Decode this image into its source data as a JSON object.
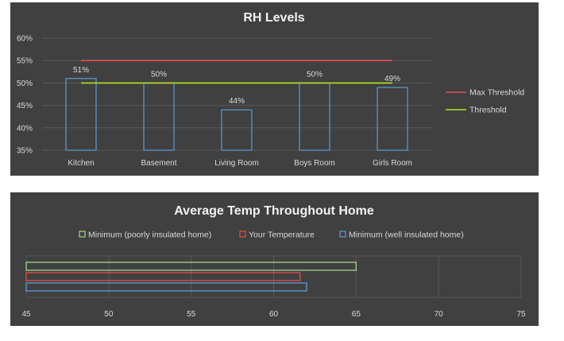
{
  "chart_data": [
    {
      "type": "bar",
      "title": "RH Levels",
      "categories": [
        "Kitchen",
        "Basement",
        "Living Room",
        "Boys Room",
        "Girls Room"
      ],
      "series": [
        {
          "values": [
            51,
            50,
            44,
            50,
            49
          ],
          "color": "#5b9bd5"
        }
      ],
      "data_labels": [
        "51%",
        "50%",
        "44%",
        "50%",
        "49%"
      ],
      "lines": [
        {
          "name": "Max Threshold",
          "value": 55,
          "color": "#e84c4c"
        },
        {
          "name": "Threshold",
          "value": 50,
          "color": "#b5e61d"
        }
      ],
      "ylim": [
        35,
        60
      ],
      "yticks": [
        35,
        40,
        45,
        50,
        55,
        60
      ],
      "ytick_labels": [
        "35%",
        "40%",
        "45%",
        "50%",
        "55%",
        "60%"
      ],
      "grid": true,
      "legend_position": "right"
    },
    {
      "type": "bar",
      "orientation": "horizontal",
      "title": "Average Temp Throughout Home",
      "series": [
        {
          "name": "Minimum (poorly insulated home)",
          "value": 65,
          "color": "#a9d18e"
        },
        {
          "name": "Your Temperature",
          "value": 61.6,
          "color": "#e84c4c"
        },
        {
          "name": "Minimum (well insulated home)",
          "value": 62,
          "color": "#5b9bd5"
        }
      ],
      "xlim": [
        45,
        75
      ],
      "xticks": [
        45,
        50,
        55,
        60,
        65,
        70,
        75
      ],
      "grid": true,
      "legend_position": "top"
    }
  ]
}
